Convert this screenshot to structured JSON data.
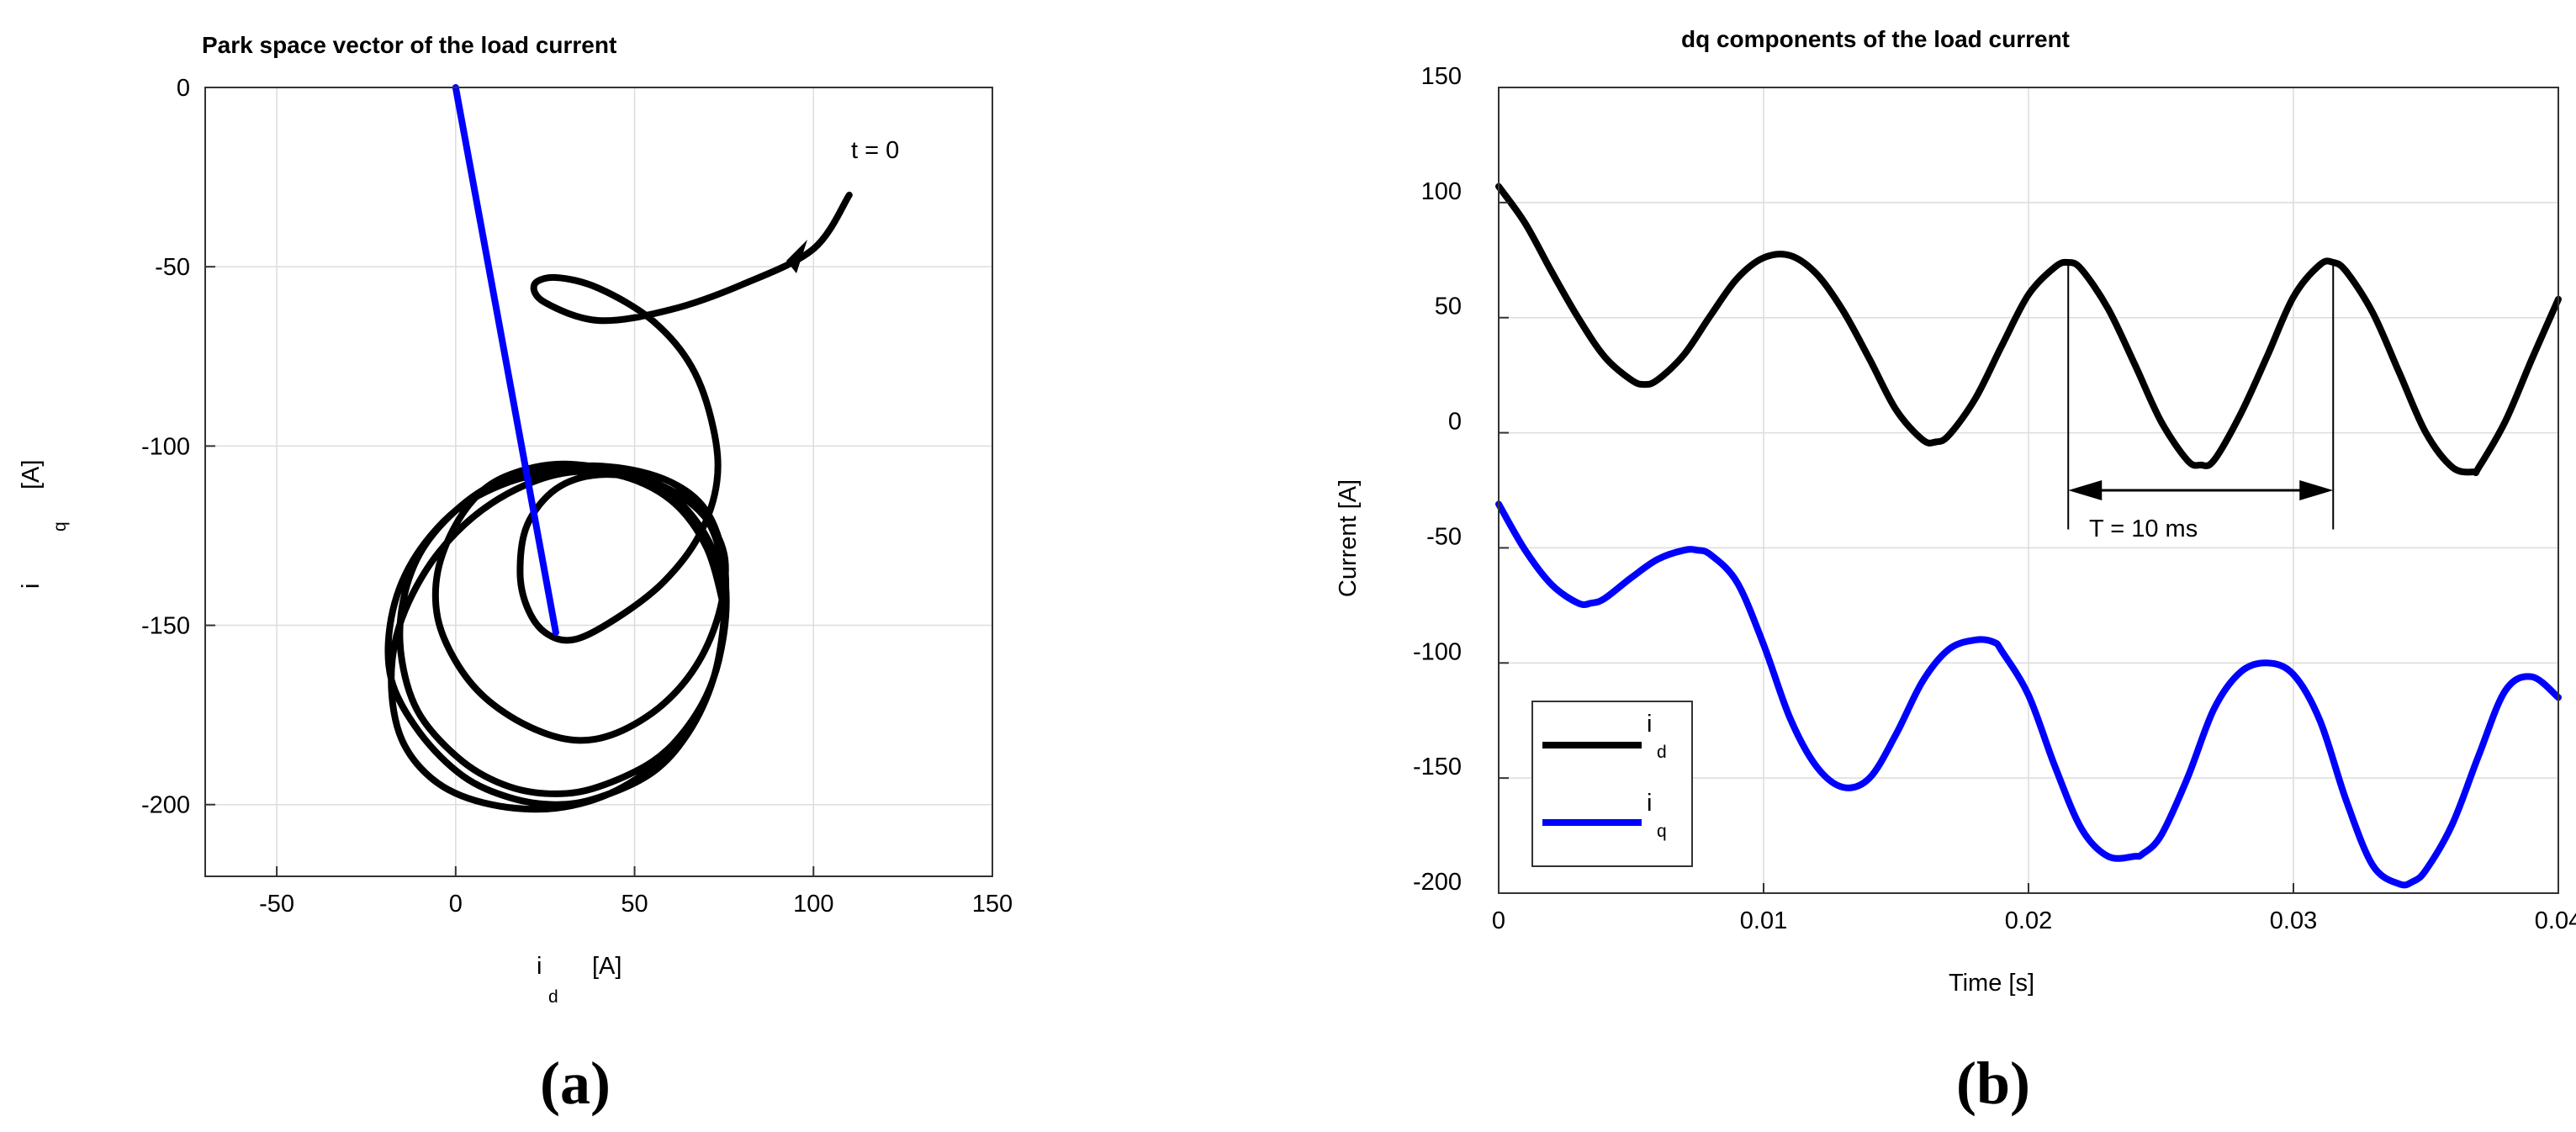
{
  "chart_data": [
    {
      "type": "line",
      "title": "Park space vector of the load current",
      "xlabel": "i",
      "xlabel_sub": "d",
      "xlabel_unit": "[A]",
      "ylabel": "i",
      "ylabel_sub": "q",
      "ylabel_unit": "[A]",
      "xlim": [
        -70,
        150
      ],
      "ylim": [
        -220,
        0
      ],
      "xticks": [
        -50,
        0,
        50,
        100,
        150
      ],
      "yticks": [
        0,
        -50,
        -100,
        -150,
        -200
      ],
      "grid": true,
      "annotation": "t = 0",
      "series": [
        {
          "color": "#000000",
          "x": [
            110,
            100,
            80,
            60,
            40,
            25,
            22,
            28,
            40,
            55,
            66,
            72,
            73,
            68,
            58,
            45,
            33,
            25,
            20,
            18,
            20,
            28,
            40,
            55,
            68,
            75,
            74,
            68,
            58,
            45,
            33,
            20,
            8,
            0,
            -5,
            -5,
            0,
            8,
            18,
            30,
            45,
            58,
            68,
            74,
            75,
            72,
            65,
            55,
            40,
            28,
            15,
            2,
            -10,
            -15,
            -15,
            -10,
            0,
            12,
            28,
            45,
            60,
            70,
            75,
            75,
            72,
            65,
            55,
            40,
            28,
            15,
            2,
            -10,
            -18,
            -18,
            -12,
            0,
            15,
            30,
            45,
            60,
            70,
            75,
            75,
            70,
            60,
            45,
            28,
            10,
            -5,
            -15,
            -18,
            -15,
            -5,
            10,
            28,
            45,
            60,
            70,
            75
          ],
          "y": [
            -30,
            -45,
            -55,
            -62,
            -65,
            -60,
            -55,
            -53,
            -56,
            -65,
            -78,
            -95,
            -110,
            -125,
            -138,
            -148,
            -154,
            -152,
            -145,
            -135,
            -122,
            -112,
            -108,
            -110,
            -118,
            -130,
            -145,
            -160,
            -172,
            -180,
            -182,
            -178,
            -170,
            -160,
            -148,
            -135,
            -122,
            -112,
            -107,
            -105,
            -107,
            -112,
            -122,
            -135,
            -150,
            -165,
            -178,
            -188,
            -195,
            -197,
            -195,
            -188,
            -175,
            -160,
            -145,
            -130,
            -118,
            -110,
            -106,
            -106,
            -110,
            -118,
            -132,
            -148,
            -165,
            -180,
            -191,
            -198,
            -200,
            -198,
            -192,
            -180,
            -165,
            -148,
            -132,
            -118,
            -110,
            -107,
            -107,
            -110,
            -120,
            -135,
            -152,
            -170,
            -185,
            -196,
            -201,
            -200,
            -194,
            -182,
            -165,
            -148,
            -130,
            -116,
            -108,
            -108,
            -115,
            -128,
            -145
          ]
        },
        {
          "color": "#0000ff",
          "x": [
            0,
            28
          ],
          "y": [
            0,
            -152
          ]
        }
      ]
    },
    {
      "type": "line",
      "title": "dq components of the load current",
      "xlabel": "Time   [s]",
      "ylabel": "Current   [A]",
      "xlim": [
        0,
        0.04
      ],
      "ylim": [
        -200,
        150
      ],
      "xticks": [
        0,
        0.01,
        0.02,
        0.03,
        0.04
      ],
      "xtick_labels": [
        "0",
        "0.01",
        "0.02",
        "0.03",
        "0.04"
      ],
      "yticks": [
        150,
        100,
        50,
        0,
        -50,
        -100,
        -150,
        -200
      ],
      "grid": true,
      "annotation": "T = 10 ms",
      "period_markers": [
        0.0215,
        0.0315
      ],
      "legend": {
        "position": "bottom-left",
        "entries": [
          {
            "label": "i",
            "sub": "d",
            "color": "#000000"
          },
          {
            "label": "i",
            "sub": "q",
            "color": "#0000ff"
          }
        ]
      },
      "series": [
        {
          "name": "id",
          "color": "#000000",
          "x": [
            0,
            0.001,
            0.002,
            0.003,
            0.004,
            0.005,
            0.0055,
            0.006,
            0.007,
            0.008,
            0.009,
            0.01,
            0.011,
            0.012,
            0.013,
            0.014,
            0.015,
            0.016,
            0.0165,
            0.017,
            0.018,
            0.019,
            0.02,
            0.021,
            0.0215,
            0.022,
            0.023,
            0.024,
            0.025,
            0.026,
            0.0265,
            0.027,
            0.028,
            0.029,
            0.03,
            0.031,
            0.0315,
            0.032,
            0.033,
            0.034,
            0.035,
            0.036,
            0.0368,
            0.037,
            0.038,
            0.039,
            0.04
          ],
          "y": [
            107,
            91,
            70,
            50,
            33,
            23,
            21,
            23,
            34,
            51,
            67,
            76,
            77,
            69,
            53,
            32,
            10,
            -3,
            -4,
            -1,
            15,
            38,
            60,
            72,
            74,
            71,
            54,
            30,
            5,
            -12,
            -14,
            -12,
            8,
            33,
            59,
            73,
            74,
            70,
            52,
            26,
            0,
            -15,
            -17,
            -15,
            5,
            32,
            58
          ]
        },
        {
          "name": "iq",
          "color": "#0000ff",
          "x": [
            0,
            0.001,
            0.002,
            0.003,
            0.0035,
            0.004,
            0.005,
            0.006,
            0.007,
            0.0075,
            0.008,
            0.009,
            0.01,
            0.011,
            0.012,
            0.013,
            0.014,
            0.015,
            0.016,
            0.017,
            0.018,
            0.0187,
            0.019,
            0.02,
            0.021,
            0.022,
            0.023,
            0.024,
            0.0243,
            0.025,
            0.026,
            0.027,
            0.028,
            0.029,
            0.03,
            0.031,
            0.032,
            0.033,
            0.034,
            0.0345,
            0.035,
            0.036,
            0.037,
            0.038,
            0.039,
            0.04
          ],
          "y": [
            -31,
            -51,
            -66,
            -74,
            -74,
            -72,
            -63,
            -55,
            -51,
            -51,
            -53,
            -65,
            -92,
            -124,
            -145,
            -154,
            -150,
            -131,
            -108,
            -94,
            -90,
            -91,
            -95,
            -114,
            -145,
            -172,
            -184,
            -184,
            -183,
            -175,
            -150,
            -120,
            -104,
            -100,
            -105,
            -125,
            -160,
            -188,
            -196,
            -195,
            -190,
            -170,
            -140,
            -112,
            -106,
            -115
          ]
        }
      ]
    }
  ],
  "panel_labels": {
    "a": "(a)",
    "b": "(b)"
  }
}
